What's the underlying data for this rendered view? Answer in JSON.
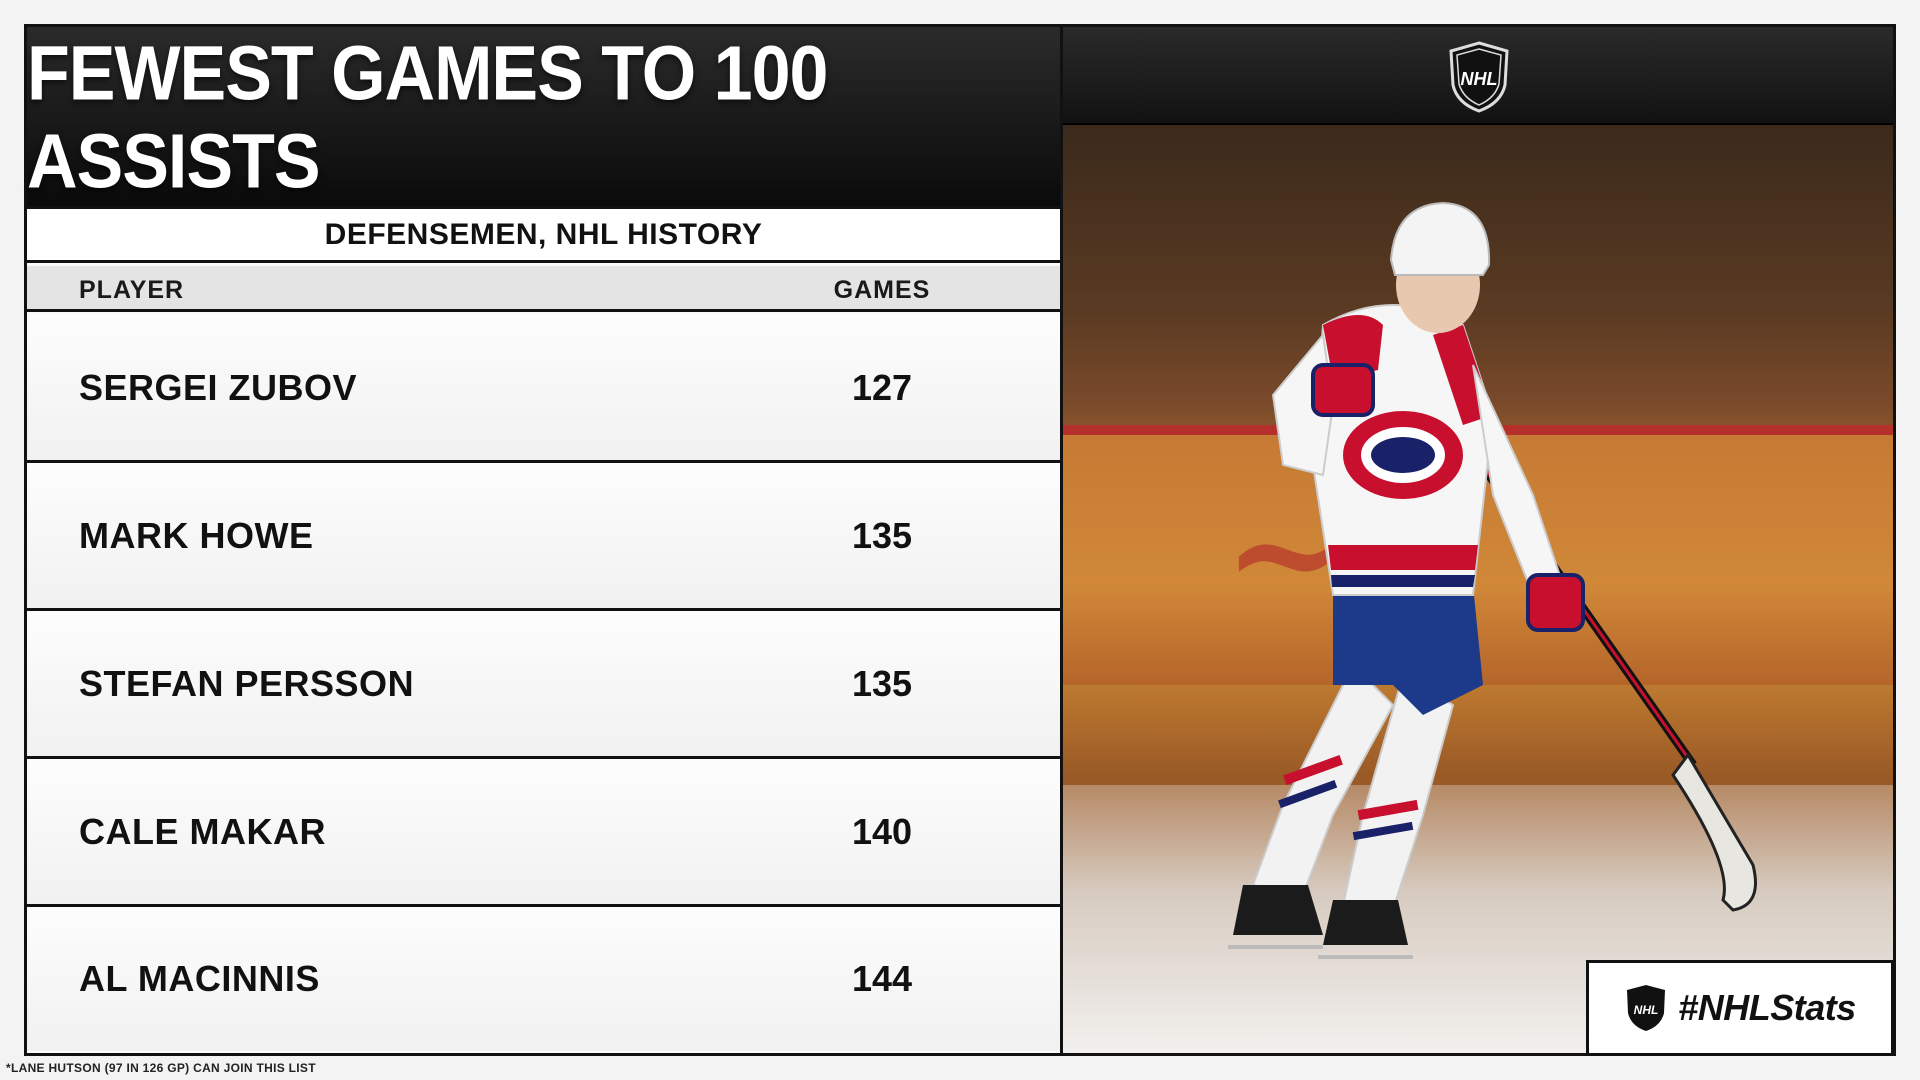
{
  "title": "FEWEST GAMES TO 100 ASSISTS",
  "subtitle": "DEFENSEMEN, NHL HISTORY",
  "columns": {
    "player": "PLAYER",
    "games": "GAMES"
  },
  "rows": [
    {
      "player": "SERGEI ZUBOV",
      "games": "127"
    },
    {
      "player": "MARK HOWE",
      "games": "135"
    },
    {
      "player": "STEFAN PERSSON",
      "games": "135"
    },
    {
      "player": "CALE MAKAR",
      "games": "140"
    },
    {
      "player": "AL MACINNIS",
      "games": "144"
    }
  ],
  "hashtag": "#NHLStats",
  "logo_text": "NHL",
  "footnote": "*LANE HUTSON (97 IN 126 GP) CAN JOIN THIS LIST",
  "colors": {
    "header_dark": "#111111",
    "canadiens_red": "#c8102e",
    "canadiens_blue": "#192168"
  },
  "icons": {
    "league_logo": "nhl-shield-icon"
  }
}
